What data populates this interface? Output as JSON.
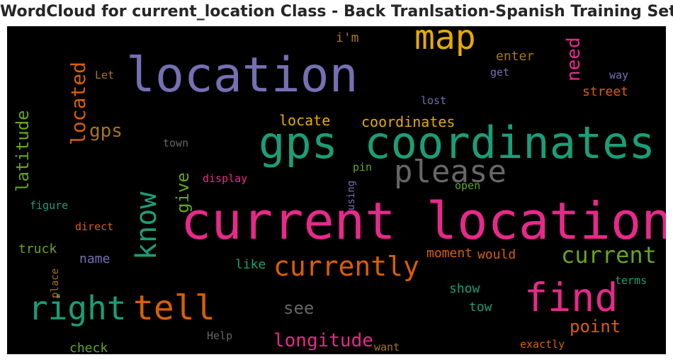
{
  "chart_data": {
    "type": "wordcloud",
    "title": "WordCloud for current_location Class - Back Tranlsation-Spanish Training Set",
    "background": "#000000",
    "words": [
      {
        "text": "current location",
        "color": "#e7298a",
        "orientation": "horizontal"
      },
      {
        "text": "gps coordinates",
        "color": "#1b9e77",
        "orientation": "horizontal"
      },
      {
        "text": "location",
        "color": "#7570b3",
        "orientation": "horizontal"
      },
      {
        "text": "map",
        "color": "#e6ab02",
        "orientation": "horizontal"
      },
      {
        "text": "find",
        "color": "#e7298a",
        "orientation": "horizontal"
      },
      {
        "text": "tell",
        "color": "#d95f02",
        "orientation": "horizontal"
      },
      {
        "text": "right",
        "color": "#1b9e77",
        "orientation": "horizontal"
      },
      {
        "text": "please",
        "color": "#666666",
        "orientation": "horizontal"
      },
      {
        "text": "know",
        "color": "#1b9e77",
        "orientation": "vertical"
      },
      {
        "text": "currently",
        "color": "#d95f02",
        "orientation": "horizontal"
      },
      {
        "text": "current",
        "color": "#66a61e",
        "orientation": "horizontal"
      },
      {
        "text": "located",
        "color": "#d95f02",
        "orientation": "vertical"
      },
      {
        "text": "need",
        "color": "#e7298a",
        "orientation": "vertical"
      },
      {
        "text": "longitude",
        "color": "#e7298a",
        "orientation": "horizontal"
      },
      {
        "text": "latitude",
        "color": "#66a61e",
        "orientation": "vertical"
      },
      {
        "text": "gps",
        "color": "#a6761d",
        "orientation": "horizontal"
      },
      {
        "text": "give",
        "color": "#66a61e",
        "orientation": "vertical"
      },
      {
        "text": "point",
        "color": "#d95f02",
        "orientation": "horizontal"
      },
      {
        "text": "see",
        "color": "#666666",
        "orientation": "horizontal"
      },
      {
        "text": "coordinates",
        "color": "#e6ab02",
        "orientation": "horizontal"
      },
      {
        "text": "locate",
        "color": "#e6ab02",
        "orientation": "horizontal"
      },
      {
        "text": "street",
        "color": "#d95f02",
        "orientation": "horizontal"
      },
      {
        "text": "enter",
        "color": "#a6761d",
        "orientation": "horizontal"
      },
      {
        "text": "i'm",
        "color": "#a6761d",
        "orientation": "horizontal"
      },
      {
        "text": "truck",
        "color": "#66a61e",
        "orientation": "horizontal"
      },
      {
        "text": "name",
        "color": "#7570b3",
        "orientation": "horizontal"
      },
      {
        "text": "like",
        "color": "#1b9e77",
        "orientation": "horizontal"
      },
      {
        "text": "moment",
        "color": "#d95f02",
        "orientation": "horizontal"
      },
      {
        "text": "would",
        "color": "#d95f02",
        "orientation": "horizontal"
      },
      {
        "text": "show",
        "color": "#1b9e77",
        "orientation": "horizontal"
      },
      {
        "text": "tow",
        "color": "#1b9e77",
        "orientation": "horizontal"
      },
      {
        "text": "check",
        "color": "#66a61e",
        "orientation": "horizontal"
      },
      {
        "text": "way",
        "color": "#7570b3",
        "orientation": "horizontal"
      },
      {
        "text": "get",
        "color": "#7570b3",
        "orientation": "horizontal"
      },
      {
        "text": "lost",
        "color": "#7570b3",
        "orientation": "horizontal"
      },
      {
        "text": "Let",
        "color": "#a6761d",
        "orientation": "horizontal"
      },
      {
        "text": "town",
        "color": "#666666",
        "orientation": "horizontal"
      },
      {
        "text": "display",
        "color": "#e7298a",
        "orientation": "horizontal"
      },
      {
        "text": "pin",
        "color": "#66a61e",
        "orientation": "horizontal"
      },
      {
        "text": "using",
        "color": "#7570b3",
        "orientation": "vertical"
      },
      {
        "text": "open",
        "color": "#66a61e",
        "orientation": "horizontal"
      },
      {
        "text": "figure",
        "color": "#1b9e77",
        "orientation": "horizontal"
      },
      {
        "text": "direct",
        "color": "#d95f02",
        "orientation": "horizontal"
      },
      {
        "text": "place",
        "color": "#a6761d",
        "orientation": "vertical"
      },
      {
        "text": "Help",
        "color": "#666666",
        "orientation": "horizontal"
      },
      {
        "text": "want",
        "color": "#a6761d",
        "orientation": "horizontal"
      },
      {
        "text": "exactly",
        "color": "#d95f02",
        "orientation": "horizontal"
      },
      {
        "text": "terms",
        "color": "#1b9e77",
        "orientation": "horizontal"
      }
    ]
  }
}
